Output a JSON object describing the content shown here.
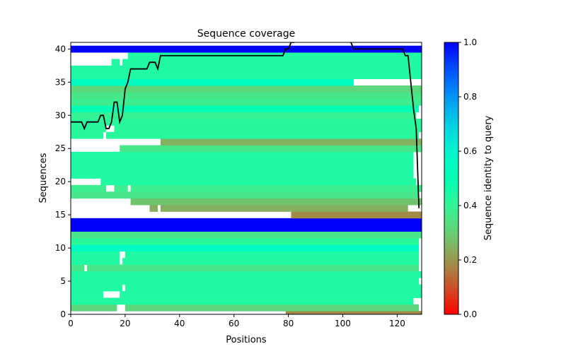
{
  "chart_data": {
    "type": "heatmap",
    "title": "Sequence coverage",
    "xlabel": "Positions",
    "ylabel": "Sequences",
    "xlim": [
      0,
      129
    ],
    "ylim": [
      0,
      41
    ],
    "x_ticks": [
      0,
      20,
      40,
      60,
      80,
      100,
      120
    ],
    "y_ticks": [
      0,
      5,
      10,
      15,
      20,
      25,
      30,
      35,
      40
    ],
    "colorbar": {
      "label": "Sequence identity to query",
      "ticks": [
        "0.0",
        "0.2",
        "0.4",
        "0.6",
        "0.8",
        "1.0"
      ],
      "range": [
        0,
        1
      ],
      "colormap": "rainbow_r"
    },
    "rows": [
      {
        "y": 0,
        "segments": [
          [
            79,
            129,
            0.18
          ]
        ]
      },
      {
        "y": 1,
        "segments": [
          [
            0,
            17,
            0.32
          ],
          [
            20,
            128,
            0.32
          ]
        ]
      },
      {
        "y": 2,
        "segments": [
          [
            0,
            126,
            0.44
          ]
        ]
      },
      {
        "y": 3,
        "segments": [
          [
            0,
            12,
            0.44
          ],
          [
            18,
            129,
            0.44
          ]
        ]
      },
      {
        "y": 4,
        "segments": [
          [
            0,
            19,
            0.44
          ],
          [
            20,
            129,
            0.44
          ]
        ]
      },
      {
        "y": 5,
        "segments": [
          [
            0,
            128,
            0.44
          ]
        ]
      },
      {
        "y": 6,
        "segments": [
          [
            0,
            129,
            0.44
          ]
        ]
      },
      {
        "y": 7,
        "segments": [
          [
            0,
            5,
            0.36
          ],
          [
            6,
            128,
            0.36
          ]
        ]
      },
      {
        "y": 8,
        "segments": [
          [
            0,
            18,
            0.44
          ],
          [
            19,
            128,
            0.44
          ]
        ]
      },
      {
        "y": 9,
        "segments": [
          [
            0,
            18,
            0.44
          ],
          [
            20,
            128,
            0.44
          ]
        ]
      },
      {
        "y": 10,
        "segments": [
          [
            0,
            128,
            0.56
          ]
        ]
      },
      {
        "y": 11,
        "segments": [
          [
            0,
            128,
            0.42
          ]
        ]
      },
      {
        "y": 12,
        "segments": [
          [
            0,
            129,
            0.36
          ]
        ]
      },
      {
        "y": 13,
        "segments": [
          [
            0,
            129,
            1.0
          ]
        ]
      },
      {
        "y": 14,
        "segments": [
          [
            0,
            129,
            1.0
          ]
        ]
      },
      {
        "y": 15,
        "segments": [
          [
            81,
            129,
            0.18
          ]
        ]
      },
      {
        "y": 16,
        "segments": [
          [
            29,
            32,
            0.24
          ],
          [
            33,
            124,
            0.24
          ]
        ]
      },
      {
        "y": 17,
        "segments": [
          [
            22,
            129,
            0.28
          ]
        ]
      },
      {
        "y": 18,
        "segments": [
          [
            0,
            128,
            0.36
          ]
        ]
      },
      {
        "y": 19,
        "segments": [
          [
            0,
            13,
            0.38
          ],
          [
            16,
            21,
            0.38
          ],
          [
            22,
            129,
            0.38
          ]
        ]
      },
      {
        "y": 20,
        "segments": [
          [
            11,
            127,
            0.44
          ]
        ]
      },
      {
        "y": 21,
        "segments": [
          [
            0,
            126,
            0.44
          ]
        ]
      },
      {
        "y": 22,
        "segments": [
          [
            0,
            126,
            0.44
          ]
        ]
      },
      {
        "y": 23,
        "segments": [
          [
            0,
            126,
            0.44
          ]
        ]
      },
      {
        "y": 24,
        "segments": [
          [
            0,
            126,
            0.44
          ]
        ]
      },
      {
        "y": 25,
        "segments": [
          [
            18,
            129,
            0.36
          ]
        ]
      },
      {
        "y": 26,
        "segments": [
          [
            33,
            129,
            0.25
          ]
        ]
      },
      {
        "y": 27,
        "segments": [
          [
            0,
            12,
            0.42
          ],
          [
            13,
            128,
            0.42
          ]
        ]
      },
      {
        "y": 28,
        "segments": [
          [
            0,
            13,
            0.42
          ],
          [
            16,
            129,
            0.42
          ]
        ]
      },
      {
        "y": 29,
        "segments": [
          [
            0,
            129,
            0.42
          ]
        ]
      },
      {
        "y": 30,
        "segments": [
          [
            0,
            127,
            0.4
          ]
        ]
      },
      {
        "y": 31,
        "segments": [
          [
            0,
            128,
            0.5
          ]
        ]
      },
      {
        "y": 32,
        "segments": [
          [
            0,
            129,
            0.38
          ]
        ]
      },
      {
        "y": 33,
        "segments": [
          [
            0,
            129,
            0.36
          ]
        ]
      },
      {
        "y": 34,
        "segments": [
          [
            0,
            129,
            0.32
          ]
        ]
      },
      {
        "y": 35,
        "segments": [
          [
            0,
            104,
            0.55
          ]
        ]
      },
      {
        "y": 36,
        "segments": [
          [
            0,
            129,
            0.44
          ]
        ]
      },
      {
        "y": 37,
        "segments": [
          [
            0,
            129,
            0.44
          ]
        ]
      },
      {
        "y": 38,
        "segments": [
          [
            15,
            18,
            0.44
          ],
          [
            19,
            129,
            0.44
          ]
        ]
      },
      {
        "y": 39,
        "segments": [
          [
            21,
            129,
            0.44
          ]
        ]
      },
      {
        "y": 40,
        "segments": [
          [
            0,
            129,
            1.0
          ]
        ]
      }
    ],
    "coverage_line": {
      "x": [
        0,
        4,
        5,
        6,
        10,
        11,
        12,
        13,
        14,
        15,
        16,
        17,
        18,
        19,
        20,
        21,
        22,
        28,
        29,
        31,
        32,
        33,
        78,
        79,
        80,
        81,
        82,
        83,
        102,
        103,
        104,
        121,
        122,
        123,
        124,
        125,
        126,
        127,
        128
      ],
      "y": [
        29,
        29,
        28,
        29,
        29,
        30,
        30,
        28,
        28,
        29,
        32,
        32,
        29,
        30,
        34,
        35,
        37,
        37,
        38,
        38,
        37,
        39,
        39,
        40,
        40,
        41,
        41,
        42,
        42,
        41,
        40,
        40,
        40,
        39,
        39,
        35,
        31,
        28,
        16
      ]
    }
  }
}
